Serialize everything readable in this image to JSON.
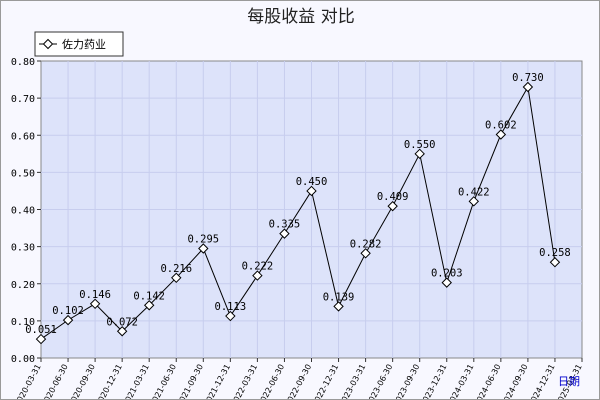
{
  "chart_data": {
    "type": "line",
    "title": "每股收益  对比",
    "xlabel": "日期",
    "ylabel": "",
    "ylim": [
      0,
      0.8
    ],
    "yticks": [
      "0.00",
      "0.10",
      "0.20",
      "0.30",
      "0.40",
      "0.50",
      "0.60",
      "0.70",
      "0.80"
    ],
    "categories": [
      "2020-03-31",
      "2020-06-30",
      "2020-09-30",
      "2020-12-31",
      "2021-03-31",
      "2021-06-30",
      "2021-09-30",
      "2021-12-31",
      "2022-03-31",
      "2022-06-30",
      "2022-09-30",
      "2022-12-31",
      "2023-03-31",
      "2023-06-30",
      "2023-09-30",
      "2023-12-31",
      "2024-03-31",
      "2024-06-30",
      "2024-09-30",
      "2024-12-31",
      "2025-03-31"
    ],
    "series": [
      {
        "name": "佐力药业",
        "values": [
          0.051,
          0.102,
          0.146,
          0.072,
          0.142,
          0.216,
          0.295,
          0.113,
          0.222,
          0.335,
          0.45,
          0.139,
          0.282,
          0.409,
          0.55,
          0.203,
          0.422,
          0.602,
          0.73,
          0.258,
          null
        ],
        "labels": [
          "0.051",
          "0.102",
          "0.146",
          "0.072",
          "0.142",
          "0.216",
          "0.295",
          "0.113",
          "0.222",
          "0.335",
          "0.450",
          "0.139",
          "0.282",
          "0.409",
          "0.550",
          "0.203",
          "0.422",
          "0.602",
          "0.730",
          "0.258",
          ""
        ]
      }
    ],
    "colors": {
      "plot_bg": "#dde3fa",
      "grid": "#c7cdee",
      "line": "#000000"
    },
    "grid": true,
    "legend": "top-left"
  }
}
